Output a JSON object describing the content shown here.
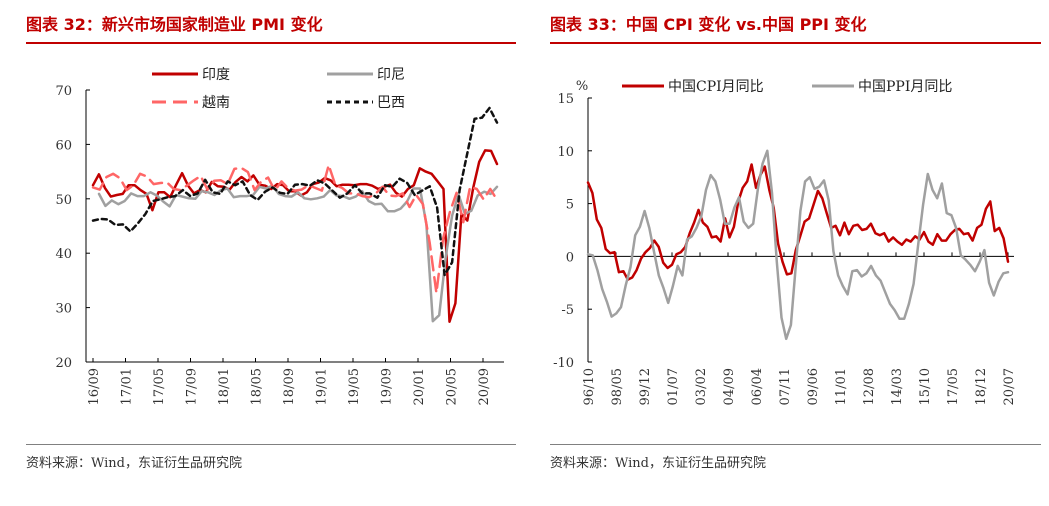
{
  "left": {
    "title": "图表 32：新兴市场国家制造业 PMI 变化",
    "source": "资料来源：Wind，东证衍生品研究院",
    "chart_data": {
      "type": "line",
      "title": "",
      "xlabel": "",
      "ylabel": "",
      "ylim": [
        20,
        70
      ],
      "yticks": [
        20,
        30,
        40,
        50,
        60,
        70
      ],
      "x_ticks": [
        "16/09",
        "17/01",
        "17/05",
        "17/09",
        "18/01",
        "18/05",
        "18/09",
        "19/01",
        "19/05",
        "19/09",
        "20/01",
        "20/05",
        "20/09"
      ],
      "x_start": "2016-09",
      "legend_position": "top",
      "grid": false,
      "series": [
        {
          "name": "印度",
          "color": "#c00000",
          "style": "solid",
          "values": [
            52.5,
            54.5,
            52.0,
            50.4,
            50.7,
            50.9,
            52.5,
            52.5,
            51.6,
            50.9,
            47.9,
            51.2,
            51.2,
            50.3,
            52.6,
            54.7,
            52.4,
            51.0,
            51.6,
            51.2,
            53.1,
            52.3,
            52.2,
            51.7,
            53.1,
            54.0,
            53.2,
            54.3,
            52.6,
            52.4,
            51.8,
            52.7,
            52.5,
            51.4,
            51.4,
            50.6,
            51.2,
            52.7,
            53.0,
            53.8,
            53.4,
            52.3,
            52.6,
            52.6,
            52.5,
            52.7,
            52.7,
            52.4,
            51.8,
            52.2,
            52.6,
            51.1,
            50.4,
            51.8,
            52.5,
            55.6,
            55.0,
            54.6,
            53.2,
            51.8,
            27.4,
            30.8,
            47.2,
            46.0,
            52.0,
            56.8,
            58.9,
            58.8,
            56.4
          ]
        },
        {
          "name": "印尼",
          "color": "#a0a0a0",
          "style": "solid",
          "values": [
            50.9,
            48.7,
            49.7,
            49.0,
            49.6,
            51.0,
            50.5,
            50.5,
            51.2,
            50.6,
            49.5,
            48.6,
            50.7,
            50.4,
            50.1,
            50.0,
            51.4,
            51.2,
            50.7,
            51.6,
            51.9,
            50.3,
            50.5,
            50.5,
            50.7,
            52.2,
            51.9,
            52.4,
            50.9,
            50.5,
            50.4,
            51.2,
            50.1,
            49.9,
            50.1,
            50.4,
            51.6,
            50.6,
            50.5,
            50.0,
            50.4,
            51.4,
            49.6,
            49.0,
            49.1,
            47.7,
            47.7,
            48.2,
            49.5,
            51.9,
            51.9,
            45.3,
            27.5,
            28.6,
            39.1,
            46.9,
            50.8,
            47.2,
            47.8,
            50.6,
            51.3,
            50.9,
            52.2
          ]
        },
        {
          "name": "越南",
          "color": "#ff6666",
          "style": "dashed",
          "values": [
            52.1,
            51.7,
            54.0,
            54.6,
            53.8,
            51.6,
            52.5,
            54.6,
            54.1,
            52.7,
            52.9,
            53.0,
            51.8,
            51.6,
            52.5,
            53.4,
            54.2,
            51.7,
            53.3,
            53.4,
            52.7,
            55.5,
            55.7,
            54.9,
            51.6,
            53.2,
            53.9,
            51.5,
            53.2,
            51.9,
            51.5,
            51.7,
            52.5,
            52.0,
            51.5,
            56.2,
            52.5,
            52.0,
            51.0,
            51.0,
            50.5,
            50.3,
            51.0,
            52.2,
            50.6,
            50.5,
            51.0,
            48.5,
            50.7,
            49.0,
            41.9,
            32.7,
            42.7,
            47.6,
            51.1,
            45.7,
            52.2,
            51.8,
            49.9,
            51.8,
            49.8
          ]
        },
        {
          "name": "巴西",
          "color": "#111111",
          "style": "dashed",
          "values": [
            46.0,
            46.3,
            46.2,
            45.2,
            45.3,
            44.0,
            45.5,
            47.2,
            49.6,
            49.9,
            50.3,
            50.5,
            51.6,
            50.5,
            51.0,
            53.5,
            51.2,
            50.9,
            53.2,
            52.5,
            53.2,
            50.7,
            49.8,
            51.3,
            52.1,
            51.1,
            50.9,
            52.6,
            52.7,
            52.4,
            53.4,
            52.8,
            51.5,
            50.2,
            51.0,
            52.5,
            51.0,
            51.0,
            50.2,
            52.5,
            52.2,
            53.7,
            52.9,
            50.7,
            51.5,
            52.3,
            48.4,
            36.0,
            38.3,
            51.6,
            58.2,
            64.7,
            64.9,
            66.7,
            64.0
          ]
        }
      ]
    }
  },
  "right": {
    "title": "图表 33：中国 CPI 变化 vs.中国 PPI 变化",
    "source": "资料来源：Wind，东证衍生品研究院",
    "chart_data": {
      "type": "line",
      "title": "",
      "xlabel": "",
      "ylabel": "%",
      "ylim": [
        -10,
        15
      ],
      "yticks": [
        -10,
        -5,
        0,
        5,
        10,
        15
      ],
      "x_ticks": [
        "96/10",
        "98/05",
        "99/12",
        "01/07",
        "03/02",
        "04/09",
        "06/04",
        "07/11",
        "09/06",
        "11/01",
        "12/08",
        "14/03",
        "15/10",
        "17/05",
        "18/12",
        "20/07"
      ],
      "x_start": "1996-10",
      "legend_position": "top",
      "grid": false,
      "series": [
        {
          "name": "中国CPI月同比",
          "color": "#c00000",
          "style": "solid",
          "values": [
            7.0,
            6.0,
            3.5,
            2.7,
            0.7,
            0.3,
            0.4,
            -1.5,
            -1.4,
            -2.2,
            -2.0,
            -1.3,
            -0.2,
            0.4,
            0.8,
            1.5,
            0.9,
            -0.6,
            -1.1,
            -0.8,
            0.2,
            0.4,
            0.9,
            2.2,
            3.2,
            4.4,
            3.2,
            2.8,
            1.8,
            1.9,
            1.4,
            3.6,
            1.8,
            2.8,
            5.2,
            6.5,
            7.1,
            8.7,
            6.5,
            7.7,
            8.5,
            6.3,
            4.6,
            1.2,
            -0.5,
            -1.7,
            -1.6,
            0.6,
            1.9,
            3.3,
            3.6,
            4.9,
            6.2,
            5.5,
            4.1,
            2.7,
            2.9,
            2.0,
            3.2,
            2.1,
            2.9,
            3.0,
            2.5,
            2.6,
            3.1,
            2.2,
            2.0,
            2.2,
            1.4,
            1.8,
            1.4,
            1.1,
            1.6,
            1.4,
            1.9,
            1.6,
            2.3,
            1.4,
            1.1,
            2.1,
            1.5,
            1.5,
            2.1,
            2.5,
            2.6,
            2.1,
            2.2,
            1.5,
            2.7,
            3.0,
            4.5,
            5.2,
            2.4,
            2.7,
            1.7,
            -0.5
          ]
        },
        {
          "name": "中国PPI月同比",
          "color": "#a0a0a0",
          "style": "solid",
          "values": [
            0.2,
            0.1,
            -1.3,
            -3.1,
            -4.3,
            -5.7,
            -5.4,
            -4.8,
            -2.7,
            -1.0,
            2.0,
            2.8,
            4.3,
            2.7,
            0.4,
            -1.8,
            -3.0,
            -4.4,
            -2.8,
            -0.9,
            -1.8,
            1.6,
            1.9,
            2.7,
            3.8,
            6.3,
            7.7,
            7.1,
            5.4,
            3.1,
            3.1,
            4.6,
            5.6,
            3.3,
            2.7,
            3.1,
            6.4,
            8.8,
            10.0,
            6.0,
            -0.5,
            -5.8,
            -7.8,
            -6.5,
            -1.1,
            4.3,
            7.1,
            7.5,
            6.4,
            6.6,
            7.2,
            5.3,
            0.5,
            -1.8,
            -2.8,
            -3.6,
            -1.4,
            -1.3,
            -1.9,
            -1.6,
            -0.9,
            -1.8,
            -2.3,
            -3.4,
            -4.5,
            -5.1,
            -5.9,
            -5.9,
            -4.5,
            -2.6,
            1.2,
            4.9,
            7.8,
            6.3,
            5.5,
            6.9,
            4.1,
            3.9,
            2.7,
            0.1,
            -0.3,
            -0.8,
            -1.4,
            -0.5,
            0.6,
            -2.5,
            -3.7,
            -2.4,
            -1.6,
            -1.5
          ]
        }
      ]
    }
  }
}
